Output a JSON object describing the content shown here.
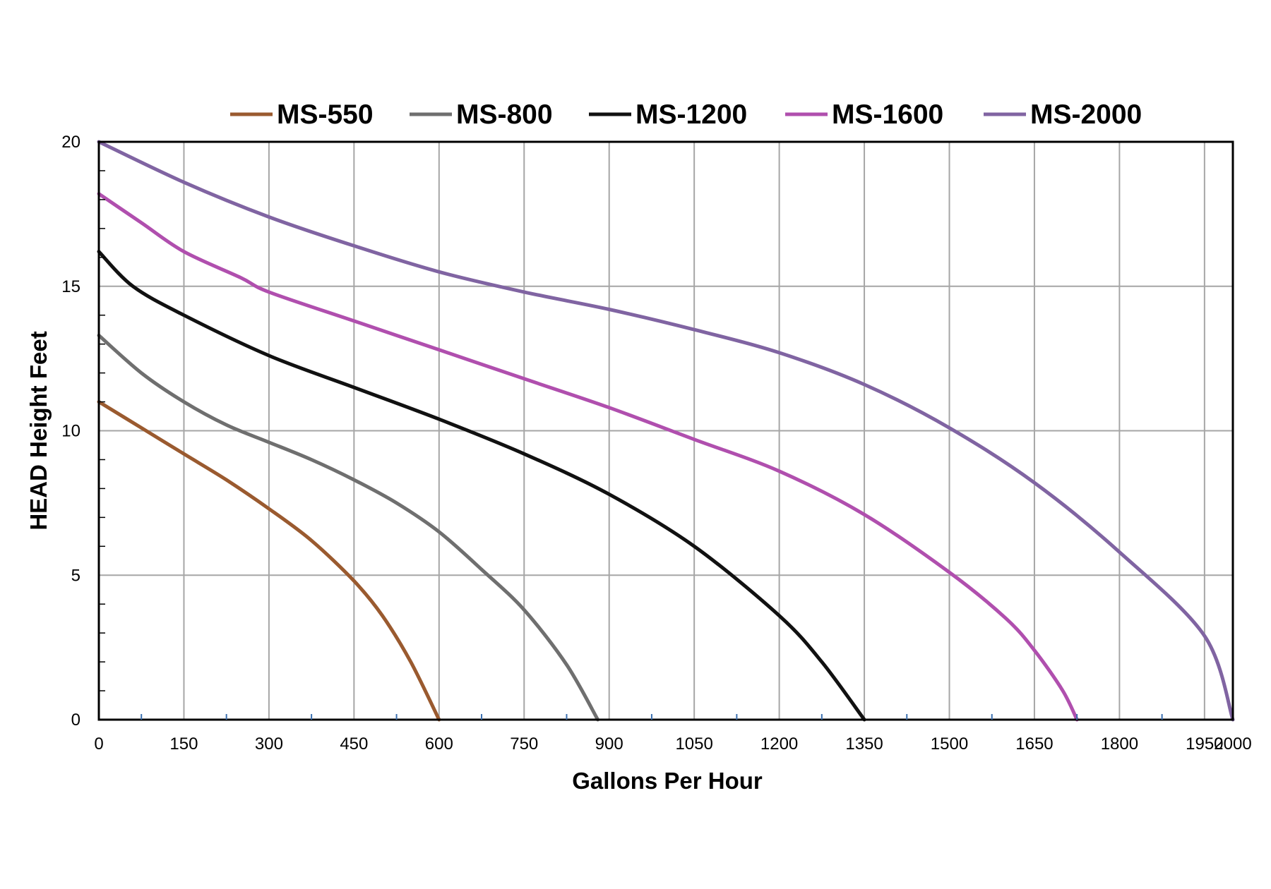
{
  "chart_data": {
    "type": "line",
    "xlabel": "Gallons Per Hour",
    "ylabel": "HEAD Height Feet",
    "xlim": [
      0,
      2000
    ],
    "ylim": [
      0,
      20
    ],
    "x_ticks": [
      "0",
      "150",
      "300",
      "450",
      "600",
      "750",
      "900",
      "1050",
      "1200",
      "1350",
      "1500",
      "1650",
      "1800",
      "1950",
      "2000"
    ],
    "y_ticks": [
      "0",
      "5",
      "10",
      "15",
      "20"
    ],
    "grid": true,
    "legend_position": "top",
    "series": [
      {
        "name": "MS-550",
        "color": "#9a5a2f",
        "points": [
          [
            0,
            11.0
          ],
          [
            75,
            10.1
          ],
          [
            150,
            9.2
          ],
          [
            225,
            8.3
          ],
          [
            300,
            7.3
          ],
          [
            375,
            6.2
          ],
          [
            450,
            4.8
          ],
          [
            500,
            3.6
          ],
          [
            550,
            2.0
          ],
          [
            600,
            0
          ]
        ]
      },
      {
        "name": "MS-800",
        "color": "#6f6f6f",
        "points": [
          [
            0,
            13.3
          ],
          [
            75,
            12.0
          ],
          [
            150,
            11.0
          ],
          [
            225,
            10.2
          ],
          [
            300,
            9.6
          ],
          [
            375,
            9.0
          ],
          [
            450,
            8.3
          ],
          [
            525,
            7.5
          ],
          [
            600,
            6.5
          ],
          [
            675,
            5.2
          ],
          [
            750,
            3.8
          ],
          [
            825,
            1.9
          ],
          [
            880,
            0
          ]
        ]
      },
      {
        "name": "MS-1200",
        "color": "#111111",
        "points": [
          [
            0,
            16.2
          ],
          [
            60,
            15.0
          ],
          [
            150,
            14.0
          ],
          [
            300,
            12.6
          ],
          [
            450,
            11.5
          ],
          [
            600,
            10.4
          ],
          [
            750,
            9.2
          ],
          [
            900,
            7.8
          ],
          [
            1050,
            6.0
          ],
          [
            1200,
            3.6
          ],
          [
            1275,
            2.0
          ],
          [
            1350,
            0
          ]
        ]
      },
      {
        "name": "MS-1600",
        "color": "#b04fae",
        "points": [
          [
            0,
            18.2
          ],
          [
            75,
            17.2
          ],
          [
            150,
            16.2
          ],
          [
            250,
            15.3
          ],
          [
            300,
            14.8
          ],
          [
            450,
            13.8
          ],
          [
            600,
            12.8
          ],
          [
            750,
            11.8
          ],
          [
            900,
            10.8
          ],
          [
            1050,
            9.7
          ],
          [
            1200,
            8.6
          ],
          [
            1350,
            7.1
          ],
          [
            1500,
            5.1
          ],
          [
            1600,
            3.5
          ],
          [
            1650,
            2.4
          ],
          [
            1700,
            1.0
          ],
          [
            1725,
            0
          ]
        ]
      },
      {
        "name": "MS-2000",
        "color": "#8064a2",
        "points": [
          [
            0,
            20.0
          ],
          [
            150,
            18.6
          ],
          [
            300,
            17.4
          ],
          [
            450,
            16.4
          ],
          [
            600,
            15.5
          ],
          [
            750,
            14.8
          ],
          [
            900,
            14.2
          ],
          [
            1050,
            13.5
          ],
          [
            1200,
            12.7
          ],
          [
            1350,
            11.6
          ],
          [
            1500,
            10.1
          ],
          [
            1650,
            8.2
          ],
          [
            1800,
            5.8
          ],
          [
            1950,
            2.9
          ],
          [
            2000,
            0
          ]
        ]
      }
    ]
  }
}
